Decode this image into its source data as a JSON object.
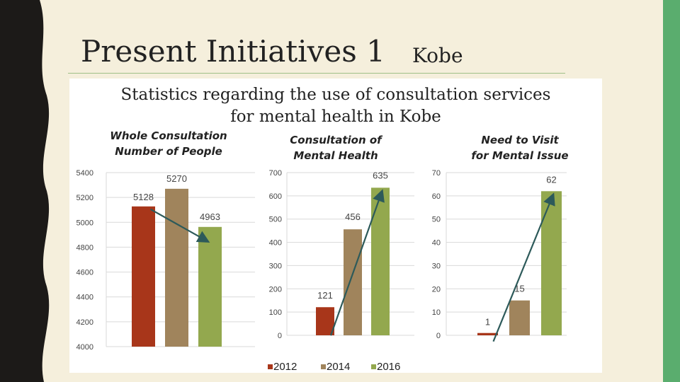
{
  "slide": {
    "title": "Present Initiatives 1",
    "subtitle": "Kobe",
    "heading_line1": "Statistics regarding the use of consultation services",
    "heading_line2": "for mental health in Kobe"
  },
  "colors": {
    "2012": "#a8361a",
    "2014": "#a0845c",
    "2016": "#93a84e",
    "accent_green": "#5aad6e",
    "trend_arrow": "#2d5a5a",
    "background": "#f5efdc",
    "border_dark": "#1c1a18"
  },
  "chart_data": [
    {
      "type": "bar",
      "title": "Whole Consultation Number of People",
      "title_lines": [
        "Whole Consultation",
        "Number of People"
      ],
      "categories": [
        "2012",
        "2014",
        "2016"
      ],
      "values": [
        5128,
        5270,
        4963
      ],
      "data_labels": [
        "5128",
        "5270",
        "4963"
      ],
      "ylim": [
        4000,
        5400
      ],
      "yticks": [
        4000,
        4200,
        4400,
        4600,
        4800,
        5000,
        5200,
        5400
      ],
      "grid": true,
      "trend_arrow": {
        "from": "2012",
        "to": "2016"
      }
    },
    {
      "type": "bar",
      "title": "Consultation of Mental Health",
      "title_lines": [
        "Consultation of",
        "Mental Health"
      ],
      "categories": [
        "2012",
        "2014",
        "2016"
      ],
      "values": [
        121,
        456,
        635
      ],
      "data_labels": [
        "121",
        "456",
        "635"
      ],
      "ylim": [
        0,
        700
      ],
      "yticks": [
        0,
        100,
        200,
        300,
        400,
        500,
        600,
        700
      ],
      "grid": true,
      "trend_arrow": {
        "from": "2012",
        "to": "2016"
      }
    },
    {
      "type": "bar",
      "title": "Need to Visit for Mental Issue",
      "title_lines": [
        "Need to Visit",
        "for Mental Issue"
      ],
      "categories": [
        "2012",
        "2014",
        "2016"
      ],
      "values": [
        1,
        15,
        62
      ],
      "data_labels": [
        "1",
        "15",
        "62"
      ],
      "ylim": [
        0,
        70
      ],
      "yticks": [
        0,
        10,
        20,
        30,
        40,
        50,
        60,
        70
      ],
      "grid": true,
      "trend_arrow": {
        "from": "2012",
        "to": "2016"
      }
    }
  ],
  "legend": {
    "placement": "bottom-center",
    "entries": [
      "2012",
      "2014",
      "2016"
    ]
  }
}
